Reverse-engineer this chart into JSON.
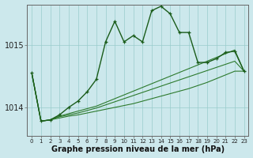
{
  "xlabel": "Graphe pression niveau de la mer (hPa)",
  "bg_color": "#cce8ec",
  "grid_color": "#99cccc",
  "line_color_main": "#1a5c1a",
  "line_color_thin": "#2d7a2d",
  "ylim": [
    1013.55,
    1015.65
  ],
  "yticks": [
    1014,
    1015
  ],
  "series": {
    "main": [
      1014.55,
      1013.78,
      1013.8,
      1013.88,
      1014.0,
      1014.1,
      1014.25,
      1014.45,
      1015.05,
      1015.38,
      1015.05,
      1015.15,
      1015.05,
      1015.55,
      1015.62,
      1015.5,
      1015.2,
      1015.2,
      1014.72,
      1014.72,
      1014.78,
      1014.88,
      1014.9,
      1014.58
    ],
    "line2": [
      1014.55,
      1013.78,
      1013.8,
      1013.86,
      1013.9,
      1013.94,
      1013.98,
      1014.02,
      1014.08,
      1014.14,
      1014.2,
      1014.26,
      1014.32,
      1014.38,
      1014.44,
      1014.5,
      1014.56,
      1014.62,
      1014.68,
      1014.74,
      1014.8,
      1014.86,
      1014.92,
      1014.58
    ],
    "line3": [
      1014.55,
      1013.78,
      1013.8,
      1013.85,
      1013.88,
      1013.91,
      1013.95,
      1013.99,
      1014.04,
      1014.09,
      1014.14,
      1014.19,
      1014.24,
      1014.29,
      1014.34,
      1014.39,
      1014.44,
      1014.49,
      1014.54,
      1014.59,
      1014.64,
      1014.69,
      1014.74,
      1014.58
    ],
    "line4": [
      1014.55,
      1013.78,
      1013.8,
      1013.83,
      1013.86,
      1013.88,
      1013.91,
      1013.94,
      1013.97,
      1014.0,
      1014.03,
      1014.06,
      1014.1,
      1014.14,
      1014.18,
      1014.22,
      1014.26,
      1014.3,
      1014.35,
      1014.4,
      1014.46,
      1014.52,
      1014.58,
      1014.58
    ]
  }
}
